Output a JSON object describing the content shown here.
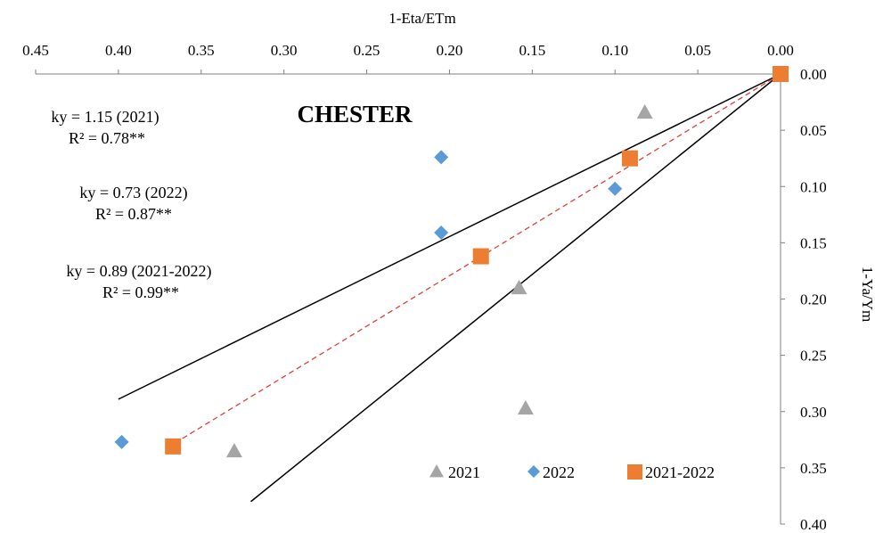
{
  "chart_data": {
    "type": "scatter",
    "title": "CHESTER",
    "xlabel": "1-Eta/ETm",
    "ylabel": "1-Ya/Ym",
    "xlim": [
      0.45,
      0.0
    ],
    "ylim": [
      0.0,
      0.4
    ],
    "x_reversed": true,
    "y_reversed": true,
    "x_axis_position": "top",
    "y_axis_position": "right",
    "grid": false,
    "legend_position": "bottom-right",
    "x_ticks": [
      "0.45",
      "0.40",
      "0.35",
      "0.30",
      "0.25",
      "0.20",
      "0.15",
      "0.10",
      "0.05",
      "0.00"
    ],
    "y_ticks": [
      "0.00",
      "0.05",
      "0.10",
      "0.15",
      "0.20",
      "0.25",
      "0.30",
      "0.35",
      "0.40"
    ],
    "series": [
      {
        "name": "2021",
        "marker": "triangle",
        "color": "#a5a5a5",
        "points": [
          [
            0.0,
            0.0
          ],
          [
            0.082,
            0.034
          ],
          [
            0.158,
            0.19
          ],
          [
            0.154,
            0.297
          ],
          [
            0.33,
            0.335
          ]
        ]
      },
      {
        "name": "2022",
        "marker": "diamond",
        "color": "#5b9bd5",
        "points": [
          [
            0.0,
            0.0
          ],
          [
            0.205,
            0.074
          ],
          [
            0.1,
            0.102
          ],
          [
            0.205,
            0.141
          ],
          [
            0.398,
            0.327
          ]
        ]
      },
      {
        "name": "2021-2022",
        "marker": "square",
        "color": "#ed7d31",
        "points": [
          [
            0.0,
            0.0
          ],
          [
            0.091,
            0.075
          ],
          [
            0.181,
            0.162
          ],
          [
            0.367,
            0.331
          ]
        ]
      }
    ],
    "trendlines": [
      {
        "style": "solid",
        "color": "#000000",
        "from": [
          0.0,
          0.0
        ],
        "to": [
          0.4,
          0.289
        ]
      },
      {
        "style": "solid",
        "color": "#000000",
        "from": [
          0.0,
          0.0
        ],
        "to": [
          0.32,
          0.38
        ]
      },
      {
        "style": "dashed",
        "color": "#e0403a",
        "from": [
          0.0,
          0.0
        ],
        "to": [
          0.367,
          0.329
        ]
      }
    ],
    "annotations": [
      {
        "line1": "ky = 1.15 (2021)",
        "line2": "R² = 0.78**"
      },
      {
        "line1": "ky = 0.73 (2022)",
        "line2": "R² = 0.87**"
      },
      {
        "line1": "ky = 0.89 (2021-2022)",
        "line2": "R² = 0.99**"
      }
    ]
  }
}
